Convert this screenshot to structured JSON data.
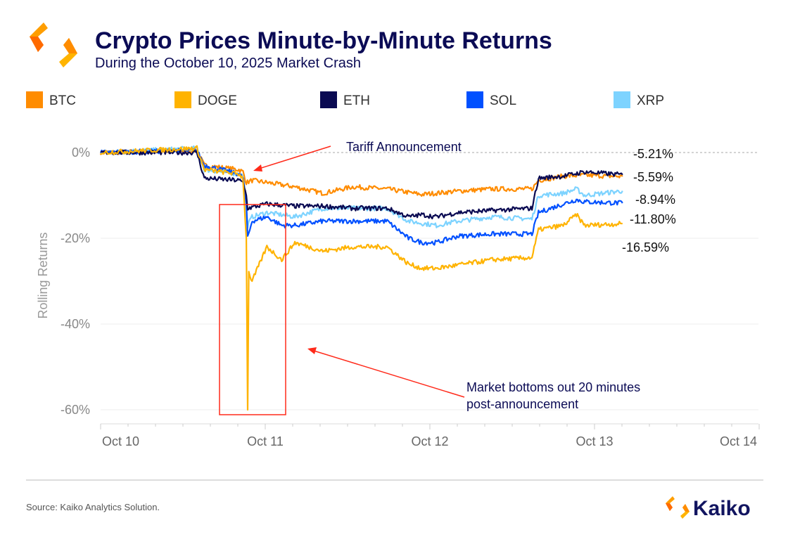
{
  "chart_data": {
    "type": "line",
    "title": "Crypto Prices Minute-by-Minute Returns",
    "subtitle": "During the October 10, 2025 Market Crash",
    "xlabel": "",
    "ylabel": "Rolling Returns",
    "x_unit": "days since Oct 10 00:00",
    "xlim": [
      0,
      4
    ],
    "ylim": [
      -64,
      5
    ],
    "x_ticks": [
      {
        "value": 0,
        "label": "Oct 10"
      },
      {
        "value": 1,
        "label": "Oct 11"
      },
      {
        "value": 2,
        "label": "Oct 12"
      },
      {
        "value": 3,
        "label": "Oct 13"
      },
      {
        "value": 4,
        "label": "Oct 14"
      }
    ],
    "y_ticks": [
      {
        "value": 0,
        "label": "0%"
      },
      {
        "value": -20,
        "label": "-20%"
      },
      {
        "value": -40,
        "label": "-40%"
      },
      {
        "value": -60,
        "label": "-60%"
      }
    ],
    "grid": true,
    "legend_position": "top",
    "series": [
      {
        "name": "BTC",
        "color": "#FF8C00",
        "end_label": "-5.59%",
        "points": [
          [
            0,
            0
          ],
          [
            0.585,
            0.5
          ],
          [
            0.63,
            -3
          ],
          [
            0.84,
            -4
          ],
          [
            0.865,
            -4.5
          ],
          [
            0.885,
            -7
          ],
          [
            0.92,
            -6.5
          ],
          [
            1.01,
            -7
          ],
          [
            1.18,
            -8
          ],
          [
            1.35,
            -9.5
          ],
          [
            1.53,
            -8
          ],
          [
            1.74,
            -8.5
          ],
          [
            1.95,
            -9.8
          ],
          [
            2.17,
            -9
          ],
          [
            2.38,
            -8.5
          ],
          [
            2.62,
            -8.5
          ],
          [
            2.66,
            -6.5
          ],
          [
            2.81,
            -5.5
          ],
          [
            2.94,
            -5.3
          ],
          [
            3.17,
            -5.59
          ]
        ]
      },
      {
        "name": "DOGE",
        "color": "#FFB300",
        "end_label": "-16.59%",
        "points": [
          [
            0,
            0
          ],
          [
            0.585,
            1
          ],
          [
            0.63,
            -4
          ],
          [
            0.84,
            -5
          ],
          [
            0.865,
            -6
          ],
          [
            0.885,
            -20
          ],
          [
            0.893,
            -60
          ],
          [
            0.9,
            -28
          ],
          [
            0.92,
            -30
          ],
          [
            1.01,
            -22
          ],
          [
            1.1,
            -25
          ],
          [
            1.18,
            -21
          ],
          [
            1.35,
            -23
          ],
          [
            1.53,
            -22
          ],
          [
            1.74,
            -22
          ],
          [
            1.87,
            -26
          ],
          [
            1.95,
            -27
          ],
          [
            2.04,
            -27
          ],
          [
            2.38,
            -25
          ],
          [
            2.62,
            -24.5
          ],
          [
            2.66,
            -18
          ],
          [
            2.81,
            -17
          ],
          [
            2.89,
            -14.5
          ],
          [
            2.94,
            -17
          ],
          [
            3.17,
            -16.59
          ]
        ]
      },
      {
        "name": "ETH",
        "color": "#0A0A52",
        "end_label": "-5.21%",
        "points": [
          [
            0,
            0
          ],
          [
            0.585,
            0
          ],
          [
            0.63,
            -6
          ],
          [
            0.84,
            -6.5
          ],
          [
            0.865,
            -7
          ],
          [
            0.885,
            -10
          ],
          [
            0.893,
            -13
          ],
          [
            1.01,
            -12
          ],
          [
            1.18,
            -12.5
          ],
          [
            1.35,
            -12.5
          ],
          [
            1.53,
            -13
          ],
          [
            1.74,
            -13
          ],
          [
            1.87,
            -15
          ],
          [
            1.95,
            -14.5
          ],
          [
            2.04,
            -15
          ],
          [
            2.17,
            -14
          ],
          [
            2.38,
            -13.5
          ],
          [
            2.62,
            -13
          ],
          [
            2.66,
            -6
          ],
          [
            2.81,
            -5.5
          ],
          [
            2.94,
            -4.5
          ],
          [
            3.17,
            -5.21
          ]
        ]
      },
      {
        "name": "SOL",
        "color": "#0050FF",
        "end_label": "-11.80%",
        "points": [
          [
            0,
            0
          ],
          [
            0.585,
            0.5
          ],
          [
            0.63,
            -3
          ],
          [
            0.84,
            -5
          ],
          [
            0.865,
            -6
          ],
          [
            0.885,
            -12
          ],
          [
            0.893,
            -20
          ],
          [
            0.92,
            -16
          ],
          [
            1.01,
            -15
          ],
          [
            1.1,
            -17
          ],
          [
            1.18,
            -17
          ],
          [
            1.35,
            -16
          ],
          [
            1.53,
            -16
          ],
          [
            1.74,
            -16
          ],
          [
            1.87,
            -20
          ],
          [
            1.95,
            -21
          ],
          [
            2.04,
            -21
          ],
          [
            2.17,
            -19.5
          ],
          [
            2.38,
            -19
          ],
          [
            2.62,
            -19
          ],
          [
            2.66,
            -14
          ],
          [
            2.81,
            -12
          ],
          [
            2.89,
            -11
          ],
          [
            2.94,
            -11.5
          ],
          [
            3.17,
            -11.8
          ]
        ]
      },
      {
        "name": "XRP",
        "color": "#7DD3FF",
        "end_label": "-8.94%",
        "points": [
          [
            0,
            0
          ],
          [
            0.585,
            1
          ],
          [
            0.63,
            -4
          ],
          [
            0.84,
            -5
          ],
          [
            0.865,
            -5.5
          ],
          [
            0.885,
            -12
          ],
          [
            0.893,
            -17
          ],
          [
            0.92,
            -15
          ],
          [
            1.01,
            -14
          ],
          [
            1.18,
            -15
          ],
          [
            1.35,
            -13
          ],
          [
            1.53,
            -13
          ],
          [
            1.74,
            -13
          ],
          [
            1.87,
            -16
          ],
          [
            1.95,
            -16.5
          ],
          [
            2.04,
            -17
          ],
          [
            2.17,
            -16
          ],
          [
            2.38,
            -15
          ],
          [
            2.62,
            -15.5
          ],
          [
            2.66,
            -10
          ],
          [
            2.81,
            -9.5
          ],
          [
            2.89,
            -8.5
          ],
          [
            2.94,
            -10
          ],
          [
            3.17,
            -8.94
          ]
        ]
      }
    ],
    "end_label_order": [
      "-5.21%",
      "-5.59%",
      "-8.94%",
      "-11.80%",
      "-16.59%"
    ],
    "annotations": {
      "tariff": "Tariff Announcement",
      "bottom_line1": "Market bottoms out 20 minutes",
      "bottom_line2": "post-announcement",
      "color": "#FF2A1A"
    }
  },
  "source": "Source: Kaiko Analytics Solution.",
  "brand": "Kaiko"
}
